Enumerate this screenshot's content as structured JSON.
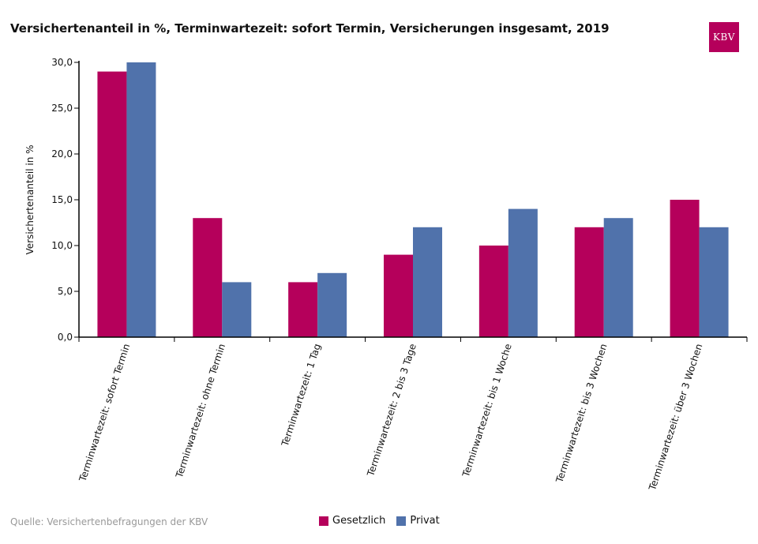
{
  "chart_data": {
    "type": "bar",
    "title": "Versichertenanteil in %, Terminwartezeit: sofort Termin, Versicherungen insgesamt, 2019",
    "ylabel": "Versichertenanteil in %",
    "xlabel": "",
    "ylim": [
      0,
      30
    ],
    "yticks": [
      "0,0",
      "5,0",
      "10,0",
      "15,0",
      "20,0",
      "25,0",
      "30,0"
    ],
    "ytick_values": [
      0,
      5,
      10,
      15,
      20,
      25,
      30
    ],
    "grid": false,
    "legend_position": "bottom",
    "categories": [
      "Terminwartezeit: sofort Termin",
      "Terminwartezeit: ohne Termin",
      "Terminwartezeit: 1 Tag",
      "Terminwartezeit: 2 bis 3 Tage",
      "Terminwartezeit: bis 1 Woche",
      "Terminwartezeit: bis 3 Wochen",
      "Terminwartezeit: über 3 Wochen"
    ],
    "series": [
      {
        "name": "Gesetzlich",
        "color": "#b5005b",
        "values": [
          29,
          13,
          6,
          9,
          10,
          12,
          15
        ]
      },
      {
        "name": "Privat",
        "color": "#5072ab",
        "values": [
          30,
          6,
          7,
          12,
          14,
          13,
          12
        ]
      }
    ]
  },
  "logo_text": "KBV",
  "source": "Quelle: Versichertenbefragungen der KBV"
}
